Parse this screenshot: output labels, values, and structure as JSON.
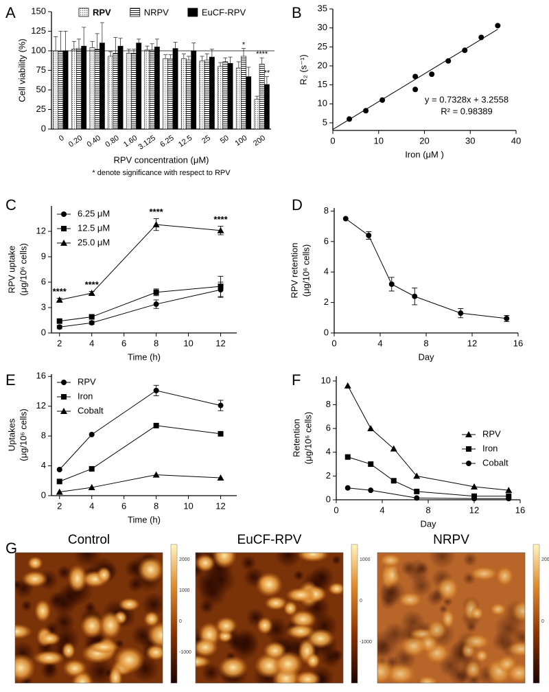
{
  "chart_data": [
    {
      "type": "bar",
      "panel": "A",
      "ylabel": [
        "Cell viability (%)"
      ],
      "xlabel": "RPV concentration (μM)",
      "note": "* denote significance with respect to RPV",
      "categories": [
        "0",
        "0.20",
        "0.40",
        "0.80",
        "1.60",
        "3.125",
        "6.25",
        "12.5",
        "25",
        "50",
        "100",
        "200"
      ],
      "series": [
        {
          "name": "RPV",
          "color": "#000000",
          "pattern": "dots",
          "values": [
            100,
            102,
            104,
            93,
            97,
            101,
            90,
            90,
            87,
            80,
            78,
            38
          ],
          "errors": [
            18,
            10,
            8,
            6,
            5,
            5,
            5,
            6,
            6,
            5,
            8,
            4
          ]
        },
        {
          "name": "NRPV",
          "color": "#000000",
          "pattern": "hlines",
          "values": [
            100,
            103,
            102,
            97,
            97,
            101,
            90,
            88,
            88,
            86,
            93,
            83
          ],
          "errors": [
            25,
            12,
            20,
            20,
            5,
            8,
            5,
            5,
            8,
            5,
            10,
            8
          ]
        },
        {
          "name": "EuCF-RPV",
          "color": "#000000",
          "pattern": "solid",
          "values": [
            100,
            106,
            110,
            106,
            110,
            105,
            103,
            100,
            92,
            84,
            67,
            57
          ],
          "errors": [
            25,
            24,
            26,
            10,
            5,
            10,
            8,
            10,
            10,
            8,
            12,
            10
          ]
        }
      ],
      "annotations": [
        {
          "text": "*",
          "category": "100",
          "series": "NRPV"
        },
        {
          "text": "****",
          "category": "200",
          "series": "NRPV"
        },
        {
          "text": "**",
          "category": "200",
          "series": "EuCF-RPV"
        }
      ],
      "hline": 100,
      "ylim": [
        0,
        150
      ],
      "yticks": [
        0,
        25,
        50,
        75,
        100,
        125,
        150
      ],
      "legend": "top"
    },
    {
      "type": "scatter",
      "panel": "B",
      "ylabel": [
        "R₂ (s⁻¹)"
      ],
      "xlabel": "Iron (μM )",
      "x": [
        3.6,
        7.2,
        10.8,
        18,
        18,
        21.6,
        25.2,
        28.8,
        32.4,
        36
      ],
      "values": [
        6,
        8.2,
        11,
        17.2,
        13.8,
        17.8,
        21.3,
        24.1,
        27.5,
        30.6
      ],
      "color": "#000000",
      "fit": {
        "slope": 0.7328,
        "intercept": 3.2558
      },
      "fit_labels": [
        "y = 0.7328x + 3.2558",
        "R² = 0.98389"
      ],
      "xlim": [
        0,
        40
      ],
      "xticks": [
        0,
        10,
        20,
        30,
        40
      ],
      "ylim": [
        3,
        35
      ],
      "yticks": [
        5,
        10,
        15,
        20,
        25,
        30,
        35
      ]
    },
    {
      "type": "line",
      "panel": "C",
      "ylabel": [
        "RPV uptake",
        "(μg/10⁶ cells)"
      ],
      "xlabel": "Time (h)",
      "x": [
        2,
        4,
        8,
        12
      ],
      "series": [
        {
          "name": "6.25 μM",
          "color": "#000000",
          "marker": "circle",
          "values": [
            0.7,
            1.2,
            3.4,
            5.1
          ],
          "errors": [
            0.2,
            0.2,
            0.5,
            0.9
          ]
        },
        {
          "name": "12.5 μM",
          "color": "#000000",
          "marker": "square",
          "values": [
            1.4,
            1.9,
            4.8,
            5.5
          ],
          "errors": [
            0.2,
            0.2,
            0.4,
            1.2
          ]
        },
        {
          "name": "25.0 μM",
          "color": "#000000",
          "marker": "triangle",
          "values": [
            3.9,
            4.7,
            12.8,
            12.1
          ],
          "errors": [
            0.2,
            0.2,
            0.7,
            0.5
          ]
        }
      ],
      "annotations": [
        "****",
        "****",
        "****",
        "****"
      ],
      "xlim": [
        1.5,
        13
      ],
      "xticks": [
        2,
        4,
        6,
        8,
        10,
        12
      ],
      "ylim": [
        0,
        15
      ],
      "yticks": [
        0,
        3,
        6,
        9,
        12
      ],
      "legend": "upper left"
    },
    {
      "type": "line",
      "panel": "D",
      "ylabel": [
        "RPV retention",
        "(μg/10⁶ cells)"
      ],
      "xlabel": "Day",
      "x": [
        1,
        3,
        5,
        7,
        11,
        15
      ],
      "series": [
        {
          "color": "#000000",
          "marker": "circle",
          "values": [
            7.5,
            6.4,
            3.2,
            2.4,
            1.3,
            0.95
          ],
          "errors": [
            0,
            0.25,
            0.45,
            0.55,
            0.3,
            0.2
          ]
        }
      ],
      "xlim": [
        0,
        16
      ],
      "xticks": [
        0,
        4,
        8,
        12,
        16
      ],
      "ylim": [
        0,
        8.2
      ],
      "yticks": [
        0,
        2,
        4,
        6,
        8
      ]
    },
    {
      "type": "line",
      "panel": "E",
      "ylabel": [
        "Uptakes",
        "(μg/10⁶ cells)"
      ],
      "xlabel": "Time (h)",
      "x": [
        2,
        4,
        8,
        12
      ],
      "series": [
        {
          "name": "RPV",
          "color": "#000000",
          "marker": "circle",
          "values": [
            3.5,
            8.2,
            14.1,
            12.1
          ],
          "errors": [
            0,
            0,
            0.7,
            0.7
          ]
        },
        {
          "name": "Iron",
          "color": "#000000",
          "marker": "square",
          "values": [
            1.9,
            3.6,
            9.4,
            8.3
          ]
        },
        {
          "name": "Cobalt",
          "color": "#000000",
          "marker": "triangle",
          "values": [
            0.5,
            1.1,
            2.8,
            2.4
          ]
        }
      ],
      "xlim": [
        1.5,
        13
      ],
      "xticks": [
        2,
        4,
        6,
        8,
        10,
        12
      ],
      "ylim": [
        0,
        16.3
      ],
      "yticks": [
        0,
        4,
        8,
        12,
        16
      ],
      "legend": "upper left"
    },
    {
      "type": "line",
      "panel": "F",
      "ylabel": [
        "Retention",
        "(μg/10⁶ cells)"
      ],
      "xlabel": "Day",
      "x": [
        1,
        3,
        5,
        7,
        12,
        15
      ],
      "series": [
        {
          "name": "RPV",
          "color": "#000000",
          "marker": "triangle",
          "values": [
            9.6,
            6.0,
            4.3,
            2.0,
            1.1,
            0.8
          ]
        },
        {
          "name": "Iron",
          "color": "#000000",
          "marker": "square",
          "values": [
            3.6,
            3.0,
            1.6,
            0.7,
            0.3,
            0.3
          ]
        },
        {
          "name": "Cobalt",
          "color": "#000000",
          "marker": "circle",
          "x": [
            1,
            3,
            7,
            12,
            15
          ],
          "values": [
            1.0,
            0.8,
            0.15,
            0.1,
            0.1
          ]
        }
      ],
      "xlim": [
        0,
        16
      ],
      "xticks": [
        0,
        4,
        8,
        12,
        16
      ],
      "ylim": [
        0,
        10.4
      ],
      "yticks": [
        0,
        2,
        4,
        6,
        8,
        10
      ],
      "legend": "lower right"
    }
  ],
  "afm_images": {
    "panel": "G",
    "images": [
      {
        "title": "Control",
        "colorbar_ticks": [
          "2000",
          "1000",
          "0",
          "-1000"
        ]
      },
      {
        "title": "EuCF-RPV",
        "colorbar_ticks": [
          "1000",
          "0",
          "-1000"
        ]
      },
      {
        "title": "NRPV",
        "colorbar_ticks": [
          "2000",
          "0"
        ]
      }
    ]
  }
}
